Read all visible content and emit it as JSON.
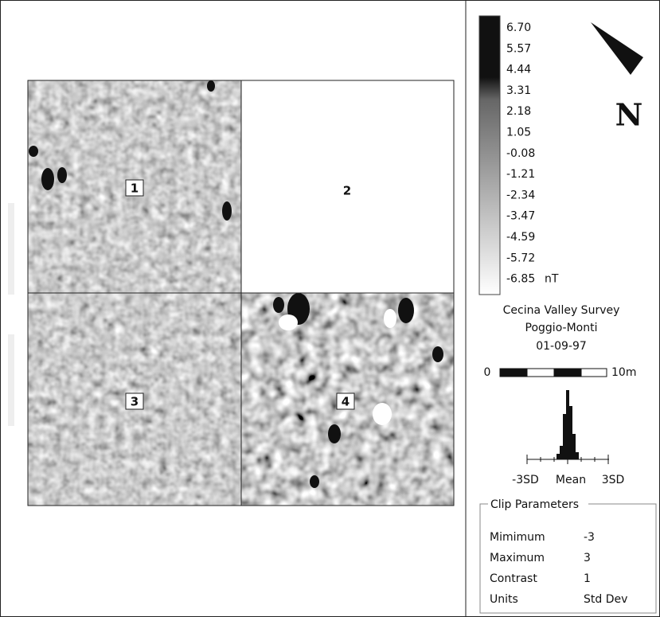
{
  "grid": {
    "tiles": [
      {
        "label": "1"
      },
      {
        "label": "2"
      },
      {
        "label": "3"
      },
      {
        "label": "4"
      }
    ]
  },
  "color_scale": {
    "labels": [
      "6.70",
      "5.57",
      "4.44",
      "3.31",
      "2.18",
      "1.05",
      "-0.08",
      "-1.21",
      "-2.34",
      "-3.47",
      "-4.59",
      "-5.72",
      "-6.85"
    ],
    "unit": "nT"
  },
  "compass": {
    "north": "N"
  },
  "survey": {
    "lines": [
      "Cecina Valley Survey",
      "Poggio-Monti",
      "01-09-97"
    ]
  },
  "scale_bar": {
    "start": "0",
    "end": "10m"
  },
  "histogram": {
    "labels": [
      "-3SD",
      "Mean",
      "3SD"
    ]
  },
  "clip_parameters": {
    "title": "Clip Parameters",
    "rows": [
      [
        "Mimimum",
        "-3"
      ],
      [
        "Maximum",
        "3"
      ],
      [
        "Contrast",
        "1"
      ],
      [
        "Units",
        "Std Dev"
      ]
    ]
  }
}
